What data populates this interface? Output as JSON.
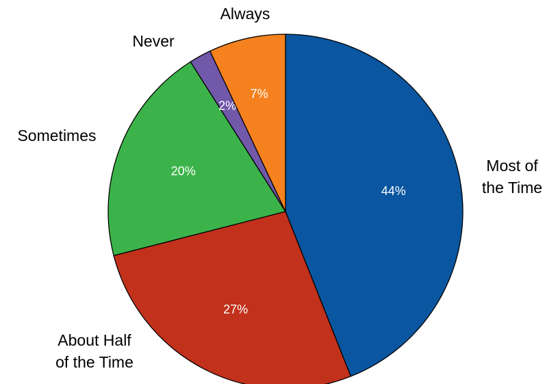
{
  "chart_data": {
    "type": "pie",
    "slices": [
      {
        "category": [
          "Most of",
          "the Time"
        ],
        "value": 44,
        "label": "44%",
        "color": "#0a56a0"
      },
      {
        "category": [
          "About Half",
          "of the Time"
        ],
        "value": 27,
        "label": "27%",
        "color": "#c2311c"
      },
      {
        "category": [
          "Sometimes"
        ],
        "value": 20,
        "label": "20%",
        "color": "#3cb34a"
      },
      {
        "category": [
          "Never"
        ],
        "value": 2,
        "label": "2%",
        "color": "#7158a8"
      },
      {
        "category": [
          "Always"
        ],
        "value": 7,
        "label": "7%",
        "color": "#f5821f"
      }
    ],
    "start": "12 o'clock",
    "direction": "clockwise",
    "legend": "none"
  }
}
